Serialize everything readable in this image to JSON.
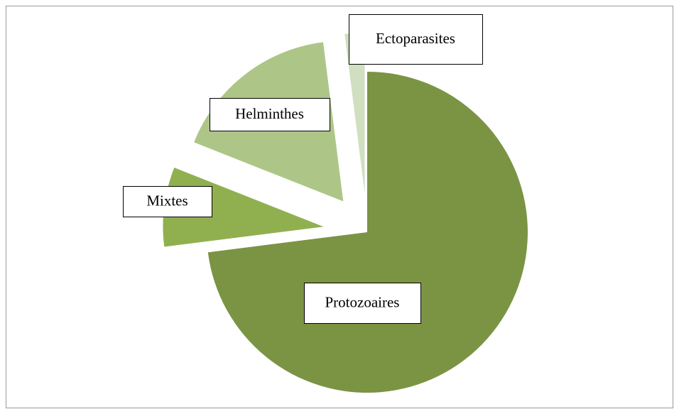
{
  "chart_data": {
    "type": "pie",
    "categories": [
      "Protozoaires",
      "Mixtes",
      "Helminthes",
      "Ectoparasites"
    ],
    "values": [
      73,
      8,
      17,
      2
    ],
    "colors": [
      "#7a9444",
      "#90b050",
      "#adc688",
      "#d0dfc0"
    ]
  }
}
